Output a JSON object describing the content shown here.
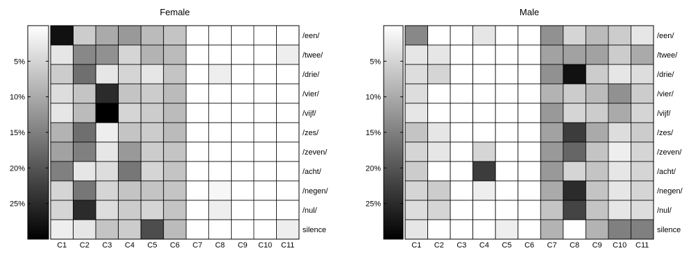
{
  "chart_data": [
    {
      "type": "heatmap",
      "title": "Female",
      "columns": [
        "C1",
        "C2",
        "C3",
        "C4",
        "C5",
        "C6",
        "C7",
        "C8",
        "C9",
        "C10",
        "C11"
      ],
      "rows": [
        "/een/",
        "/twee/",
        "/drie/",
        "/vier/",
        "/vijf/",
        "/zes/",
        "/zeven/",
        "/acht/",
        "/negen/",
        "/nul/",
        "silence"
      ],
      "colorbar_ticks": [
        "5%",
        "10%",
        "15%",
        "20%",
        "25%"
      ],
      "colorbar_range": [
        0,
        30
      ],
      "colormap": "gray",
      "values": [
        [
          28,
          6,
          10,
          12,
          8,
          7,
          0,
          0,
          0,
          0,
          0
        ],
        [
          3,
          14,
          13,
          5,
          9,
          8,
          0,
          0,
          0,
          0,
          2
        ],
        [
          6,
          17,
          3,
          5,
          3,
          7,
          0,
          2,
          0,
          0,
          0
        ],
        [
          4,
          7,
          25,
          7,
          6,
          8,
          0,
          0,
          0,
          0,
          0
        ],
        [
          3,
          8,
          30,
          5,
          6,
          8,
          0,
          0,
          0,
          0,
          0
        ],
        [
          9,
          17,
          2,
          7,
          6,
          8,
          0,
          0,
          0,
          0,
          0
        ],
        [
          11,
          15,
          3,
          12,
          6,
          7,
          0,
          0,
          0,
          0,
          0
        ],
        [
          15,
          3,
          4,
          16,
          5,
          7,
          0,
          0,
          0,
          0,
          0
        ],
        [
          5,
          16,
          5,
          7,
          7,
          7,
          0,
          1,
          0,
          0,
          0
        ],
        [
          5,
          25,
          4,
          6,
          5,
          7,
          0,
          2,
          0,
          0,
          0
        ],
        [
          2,
          3,
          7,
          6,
          21,
          8,
          0,
          0,
          0,
          0,
          2
        ]
      ]
    },
    {
      "type": "heatmap",
      "title": "Male",
      "columns": [
        "C1",
        "C2",
        "C3",
        "C4",
        "C5",
        "C6",
        "C7",
        "C8",
        "C9",
        "C10",
        "C11"
      ],
      "rows": [
        "/een/",
        "/twee/",
        "/drie/",
        "/vier/",
        "/vijf/",
        "/zes/",
        "/zeven/",
        "/acht/",
        "/negen/",
        "/nul/",
        "silence"
      ],
      "colorbar_ticks": [
        "5%",
        "10%",
        "15%",
        "20%",
        "25%"
      ],
      "colorbar_range": [
        0,
        30
      ],
      "colormap": "gray",
      "values": [
        [
          14,
          0,
          0,
          3,
          0,
          0,
          13,
          5,
          8,
          6,
          3
        ],
        [
          3,
          3,
          0,
          0,
          0,
          0,
          11,
          11,
          11,
          6,
          10
        ],
        [
          4,
          5,
          0,
          0,
          0,
          0,
          13,
          28,
          6,
          3,
          4
        ],
        [
          4,
          0,
          0,
          0,
          0,
          0,
          9,
          6,
          8,
          13,
          6
        ],
        [
          3,
          0,
          0,
          0,
          0,
          0,
          12,
          5,
          6,
          10,
          5
        ],
        [
          7,
          3,
          0,
          0,
          0,
          0,
          11,
          23,
          10,
          4,
          6
        ],
        [
          5,
          3,
          0,
          5,
          0,
          0,
          12,
          18,
          7,
          2,
          5
        ],
        [
          6,
          0,
          0,
          23,
          0,
          0,
          12,
          5,
          7,
          3,
          5
        ],
        [
          5,
          6,
          0,
          2,
          0,
          0,
          10,
          25,
          7,
          3,
          5
        ],
        [
          4,
          5,
          0,
          0,
          0,
          0,
          7,
          22,
          7,
          3,
          4
        ],
        [
          3,
          0,
          0,
          0,
          2,
          0,
          9,
          0,
          9,
          15,
          15
        ]
      ]
    }
  ]
}
